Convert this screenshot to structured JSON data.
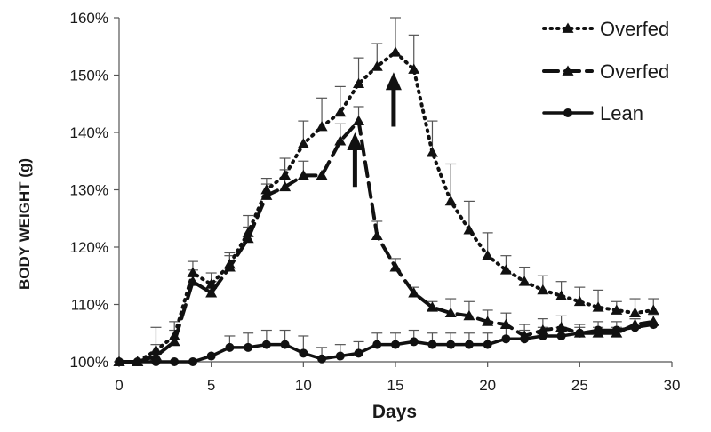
{
  "chart_data": {
    "type": "line",
    "xlabel": "Days",
    "ylabel": "BODY WEIGHT (g)",
    "xlim": [
      0,
      30
    ],
    "ylim": [
      100,
      160
    ],
    "xticks": [
      0,
      5,
      10,
      15,
      20,
      25,
      30
    ],
    "xtick_labels": [
      "0",
      "5",
      "10",
      "15",
      "20",
      "25",
      "30"
    ],
    "yticks": [
      100,
      110,
      120,
      130,
      140,
      150,
      160
    ],
    "ytick_labels": [
      "100%",
      "110%",
      "120%",
      "130%",
      "140%",
      "150%",
      "160%"
    ],
    "grid": false,
    "legend_position": "top-right",
    "series": [
      {
        "name": "Overfed",
        "style": "dotted",
        "marker": "triangle",
        "x": [
          0,
          1,
          2,
          3,
          4,
          5,
          6,
          7,
          8,
          9,
          10,
          11,
          12,
          13,
          14,
          15,
          16,
          17,
          18,
          19,
          20,
          21,
          22,
          23,
          24,
          25,
          26,
          27,
          28,
          29
        ],
        "y": [
          100,
          100,
          102,
          104.5,
          115.5,
          113.5,
          117,
          122.5,
          130,
          132.5,
          138,
          141,
          143.5,
          148.5,
          151.5,
          154,
          151,
          136.5,
          128,
          123,
          118.5,
          116,
          114,
          112.5,
          111.5,
          110.5,
          109.5,
          109,
          108.5,
          109
        ],
        "err": [
          0,
          0,
          4,
          2.5,
          2,
          2,
          2,
          3,
          2,
          3,
          4,
          5,
          4.5,
          4.5,
          4,
          6,
          6,
          5.5,
          6.5,
          5,
          4,
          2.5,
          2.5,
          2.5,
          2.5,
          2.5,
          3,
          1.5,
          2.5,
          2
        ]
      },
      {
        "name": "Overfed",
        "style": "dashed",
        "marker": "triangle",
        "x": [
          0,
          1,
          2,
          3,
          4,
          5,
          6,
          7,
          8,
          9,
          10,
          11,
          12,
          13,
          14,
          15,
          16,
          17,
          18,
          19,
          20,
          21,
          22,
          23,
          24,
          25,
          26,
          27,
          28,
          29
        ],
        "y": [
          100,
          100,
          101,
          103.5,
          114,
          112,
          116.5,
          121.5,
          129,
          130.5,
          132.5,
          132.5,
          138.5,
          142,
          122,
          116.5,
          112,
          109.5,
          108.5,
          108,
          107,
          106.5,
          104.5,
          105.5,
          106,
          105,
          105,
          105,
          106.5,
          107
        ],
        "err": [
          0,
          0,
          2,
          2,
          2,
          2,
          2,
          2,
          2,
          3,
          2.5,
          0,
          3,
          2.5,
          2.5,
          1.5,
          1,
          1,
          2.5,
          2.5,
          2,
          2,
          2,
          2,
          2,
          1,
          1,
          1,
          1,
          1
        ]
      },
      {
        "name": "Lean",
        "style": "solid",
        "marker": "circle",
        "x": [
          0,
          1,
          2,
          3,
          4,
          5,
          6,
          7,
          8,
          9,
          10,
          11,
          12,
          13,
          14,
          15,
          16,
          17,
          18,
          19,
          20,
          21,
          22,
          23,
          24,
          25,
          26,
          27,
          28,
          29
        ],
        "y": [
          100,
          100,
          100,
          100,
          100,
          101,
          102.5,
          102.5,
          103,
          103,
          101.5,
          100.5,
          101,
          101.5,
          103,
          103,
          103.5,
          103,
          103,
          103,
          103,
          104,
          104,
          104.5,
          104.5,
          105,
          105.5,
          105.5,
          106,
          106.5
        ],
        "err": [
          0,
          0,
          0,
          0,
          0,
          0,
          2,
          2.5,
          2.5,
          2.5,
          3,
          2,
          2,
          2,
          2,
          2,
          2,
          2,
          2,
          2,
          2,
          2,
          1.5,
          1.5,
          1.5,
          1.5,
          1.5,
          1.5,
          1.5,
          1.5
        ]
      }
    ],
    "annotations": [
      {
        "type": "arrow",
        "x": 12.8,
        "y_from": 130.5,
        "y_to": 140
      },
      {
        "type": "arrow",
        "x": 14.9,
        "y_from": 141,
        "y_to": 150.5
      }
    ]
  }
}
